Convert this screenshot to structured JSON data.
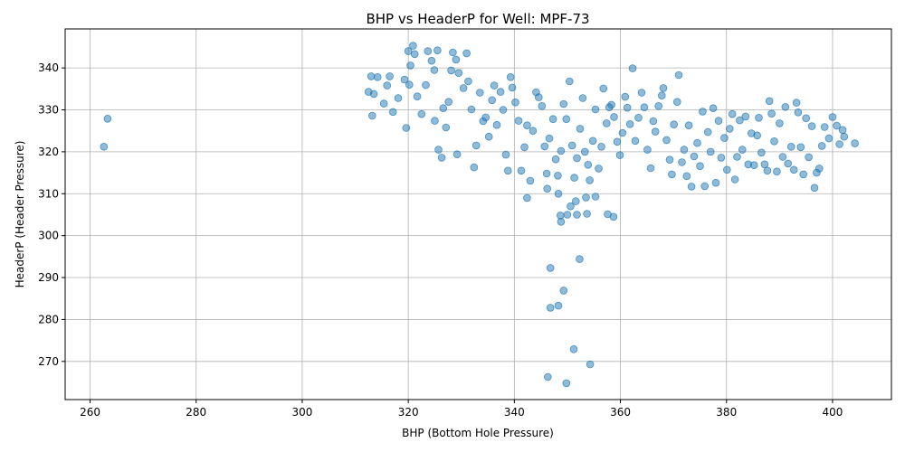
{
  "chart_data": {
    "type": "scatter",
    "title": "BHP vs HeaderP for Well: MPF-73",
    "xlabel": "BHP (Bottom Hole Pressure)",
    "ylabel": "HeaderP (Header Pressure)",
    "xlim": [
      255.3,
      411.1
    ],
    "ylim": [
      260.9,
      349.3
    ],
    "xticks": [
      260,
      280,
      300,
      320,
      340,
      360,
      380,
      400
    ],
    "yticks": [
      270,
      280,
      290,
      300,
      310,
      320,
      330,
      340
    ],
    "grid": true,
    "color": "#1f77b4",
    "points": [
      [
        262.6,
        321.2
      ],
      [
        263.3,
        327.9
      ],
      [
        346.3,
        266.3
      ],
      [
        349.8,
        264.8
      ],
      [
        351.2,
        272.9
      ],
      [
        354.3,
        269.3
      ],
      [
        346.8,
        292.3
      ],
      [
        352.3,
        294.4
      ],
      [
        349.3,
        286.9
      ],
      [
        346.8,
        282.8
      ],
      [
        348.3,
        283.3
      ],
      [
        348.7,
        304.8
      ],
      [
        348.8,
        303.3
      ],
      [
        350.0,
        305.0
      ],
      [
        351.8,
        305.0
      ],
      [
        353.7,
        305.2
      ],
      [
        357.6,
        305.1
      ],
      [
        358.7,
        304.5
      ],
      [
        346.2,
        311.2
      ],
      [
        348.3,
        310.0
      ],
      [
        350.6,
        307.0
      ],
      [
        351.6,
        308.2
      ],
      [
        353.5,
        309.1
      ],
      [
        355.3,
        309.3
      ],
      [
        342.4,
        309.0
      ],
      [
        313.0,
        338.0
      ],
      [
        313.5,
        333.8
      ],
      [
        313.2,
        328.6
      ],
      [
        312.5,
        334.3
      ],
      [
        314.2,
        337.8
      ],
      [
        315.4,
        331.5
      ],
      [
        316.0,
        335.8
      ],
      [
        316.5,
        338.0
      ],
      [
        317.1,
        329.5
      ],
      [
        318.1,
        332.8
      ],
      [
        319.3,
        337.2
      ],
      [
        319.6,
        325.7
      ],
      [
        320.0,
        344.0
      ],
      [
        320.4,
        340.6
      ],
      [
        320.9,
        345.3
      ],
      [
        321.2,
        343.3
      ],
      [
        320.2,
        336.0
      ],
      [
        321.7,
        333.2
      ],
      [
        322.5,
        329.0
      ],
      [
        323.3,
        335.9
      ],
      [
        323.7,
        344.0
      ],
      [
        324.4,
        341.7
      ],
      [
        324.9,
        339.5
      ],
      [
        325.5,
        344.2
      ],
      [
        325.0,
        327.4
      ],
      [
        325.7,
        320.5
      ],
      [
        326.3,
        318.6
      ],
      [
        326.6,
        330.4
      ],
      [
        327.1,
        325.8
      ],
      [
        327.6,
        331.9
      ],
      [
        328.1,
        339.4
      ],
      [
        328.4,
        343.7
      ],
      [
        329.0,
        342.0
      ],
      [
        329.5,
        338.8
      ],
      [
        329.2,
        319.4
      ],
      [
        330.4,
        335.2
      ],
      [
        331.0,
        343.5
      ],
      [
        331.3,
        336.8
      ],
      [
        331.9,
        330.1
      ],
      [
        332.4,
        316.3
      ],
      [
        332.8,
        321.5
      ],
      [
        333.5,
        334.1
      ],
      [
        334.1,
        327.3
      ],
      [
        334.6,
        328.2
      ],
      [
        335.2,
        323.6
      ],
      [
        335.8,
        332.3
      ],
      [
        336.2,
        335.8
      ],
      [
        336.7,
        326.4
      ],
      [
        337.4,
        334.3
      ],
      [
        337.9,
        330.0
      ],
      [
        338.4,
        319.3
      ],
      [
        338.8,
        315.5
      ],
      [
        339.3,
        337.8
      ],
      [
        339.6,
        335.3
      ],
      [
        340.2,
        331.8
      ],
      [
        340.8,
        327.4
      ],
      [
        341.3,
        315.5
      ],
      [
        341.9,
        321.1
      ],
      [
        342.4,
        326.3
      ],
      [
        343.0,
        313.1
      ],
      [
        343.5,
        325.0
      ],
      [
        344.1,
        334.2
      ],
      [
        344.6,
        333.0
      ],
      [
        345.2,
        330.9
      ],
      [
        345.7,
        321.3
      ],
      [
        346.1,
        314.8
      ],
      [
        346.6,
        323.2
      ],
      [
        347.3,
        327.8
      ],
      [
        347.8,
        318.2
      ],
      [
        348.2,
        314.3
      ],
      [
        348.8,
        320.2
      ],
      [
        349.3,
        331.4
      ],
      [
        349.8,
        327.8
      ],
      [
        350.4,
        336.8
      ],
      [
        350.9,
        321.5
      ],
      [
        351.3,
        313.8
      ],
      [
        351.8,
        318.5
      ],
      [
        352.4,
        325.5
      ],
      [
        352.9,
        332.8
      ],
      [
        353.3,
        320.0
      ],
      [
        353.9,
        316.9
      ],
      [
        354.2,
        313.2
      ],
      [
        354.8,
        322.6
      ],
      [
        355.3,
        330.1
      ],
      [
        355.9,
        316.0
      ],
      [
        356.4,
        321.2
      ],
      [
        356.8,
        335.1
      ],
      [
        357.4,
        326.8
      ],
      [
        357.9,
        330.6
      ],
      [
        358.3,
        331.2
      ],
      [
        358.8,
        328.3
      ],
      [
        359.4,
        322.4
      ],
      [
        359.9,
        319.2
      ],
      [
        360.4,
        324.5
      ],
      [
        360.9,
        333.1
      ],
      [
        361.3,
        330.5
      ],
      [
        361.8,
        326.6
      ],
      [
        362.3,
        339.9
      ],
      [
        362.8,
        322.6
      ],
      [
        363.4,
        328.1
      ],
      [
        364.0,
        334.1
      ],
      [
        364.5,
        330.6
      ],
      [
        365.1,
        320.5
      ],
      [
        365.7,
        316.1
      ],
      [
        366.2,
        327.3
      ],
      [
        366.6,
        324.8
      ],
      [
        367.2,
        330.9
      ],
      [
        367.8,
        333.4
      ],
      [
        368.1,
        335.2
      ],
      [
        368.7,
        322.8
      ],
      [
        369.3,
        318.1
      ],
      [
        369.7,
        314.6
      ],
      [
        370.1,
        326.5
      ],
      [
        370.7,
        331.9
      ],
      [
        371.0,
        338.3
      ],
      [
        371.6,
        317.5
      ],
      [
        372.0,
        320.5
      ],
      [
        372.5,
        314.2
      ],
      [
        372.9,
        326.3
      ],
      [
        373.4,
        311.7
      ],
      [
        373.9,
        318.9
      ],
      [
        374.5,
        322.1
      ],
      [
        375.0,
        316.6
      ],
      [
        375.5,
        329.6
      ],
      [
        375.9,
        311.8
      ],
      [
        376.5,
        324.7
      ],
      [
        377.0,
        320.0
      ],
      [
        377.5,
        330.4
      ],
      [
        378.0,
        312.6
      ],
      [
        378.5,
        327.4
      ],
      [
        379.0,
        318.6
      ],
      [
        379.6,
        323.3
      ],
      [
        380.1,
        315.7
      ],
      [
        380.6,
        325.5
      ],
      [
        381.1,
        329.0
      ],
      [
        381.6,
        313.4
      ],
      [
        382.0,
        318.8
      ],
      [
        382.5,
        327.5
      ],
      [
        383.0,
        320.5
      ],
      [
        383.6,
        328.4
      ],
      [
        384.1,
        317.0
      ],
      [
        384.7,
        324.4
      ],
      [
        385.2,
        316.8
      ],
      [
        385.8,
        323.9
      ],
      [
        386.1,
        328.1
      ],
      [
        386.6,
        319.8
      ],
      [
        387.2,
        317.0
      ],
      [
        387.7,
        315.5
      ],
      [
        388.1,
        332.1
      ],
      [
        388.5,
        329.1
      ],
      [
        389.0,
        322.5
      ],
      [
        389.5,
        315.3
      ],
      [
        390.0,
        326.8
      ],
      [
        390.6,
        318.8
      ],
      [
        391.1,
        330.7
      ],
      [
        391.6,
        317.2
      ],
      [
        392.2,
        321.2
      ],
      [
        392.7,
        315.7
      ],
      [
        393.2,
        331.7
      ],
      [
        393.5,
        329.4
      ],
      [
        394.0,
        321.1
      ],
      [
        394.5,
        314.6
      ],
      [
        395.0,
        328.0
      ],
      [
        395.5,
        318.7
      ],
      [
        396.1,
        326.1
      ],
      [
        396.6,
        311.4
      ],
      [
        397.0,
        315.0
      ],
      [
        397.5,
        316.0
      ],
      [
        398.0,
        321.4
      ],
      [
        398.5,
        325.9
      ],
      [
        399.3,
        323.2
      ],
      [
        400.0,
        328.3
      ],
      [
        400.8,
        326.2
      ],
      [
        401.3,
        321.8
      ],
      [
        401.9,
        325.2
      ],
      [
        402.2,
        323.6
      ],
      [
        404.2,
        322.0
      ]
    ]
  }
}
